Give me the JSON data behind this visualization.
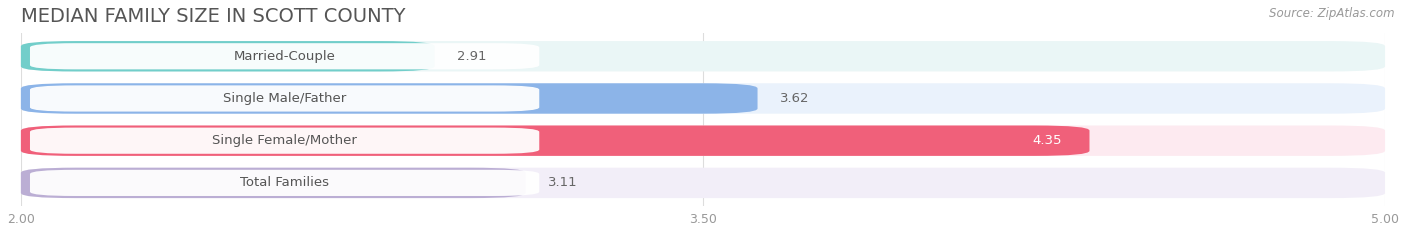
{
  "title": "MEDIAN FAMILY SIZE IN SCOTT COUNTY",
  "source": "Source: ZipAtlas.com",
  "categories": [
    "Married-Couple",
    "Single Male/Father",
    "Single Female/Mother",
    "Total Families"
  ],
  "values": [
    2.91,
    3.62,
    4.35,
    3.11
  ],
  "bar_colors": [
    "#72ceca",
    "#8cb4e8",
    "#f0607a",
    "#bbaed4"
  ],
  "bar_bg_colors": [
    "#eaf6f6",
    "#eaf2fc",
    "#fdeaf0",
    "#f2eef8"
  ],
  "xlim_min": 2.0,
  "xlim_max": 5.0,
  "xticks": [
    2.0,
    3.5,
    5.0
  ],
  "xtick_labels": [
    "2.00",
    "3.50",
    "5.00"
  ],
  "label_fontsize": 9.5,
  "title_fontsize": 14,
  "value_fontsize": 9.5,
  "value_label_color_inside": "#ffffff",
  "value_label_color_outside": "#666666",
  "background_color": "#ffffff",
  "grid_color": "#dddddd",
  "title_color": "#555555",
  "source_color": "#999999",
  "label_text_color": "#555555"
}
